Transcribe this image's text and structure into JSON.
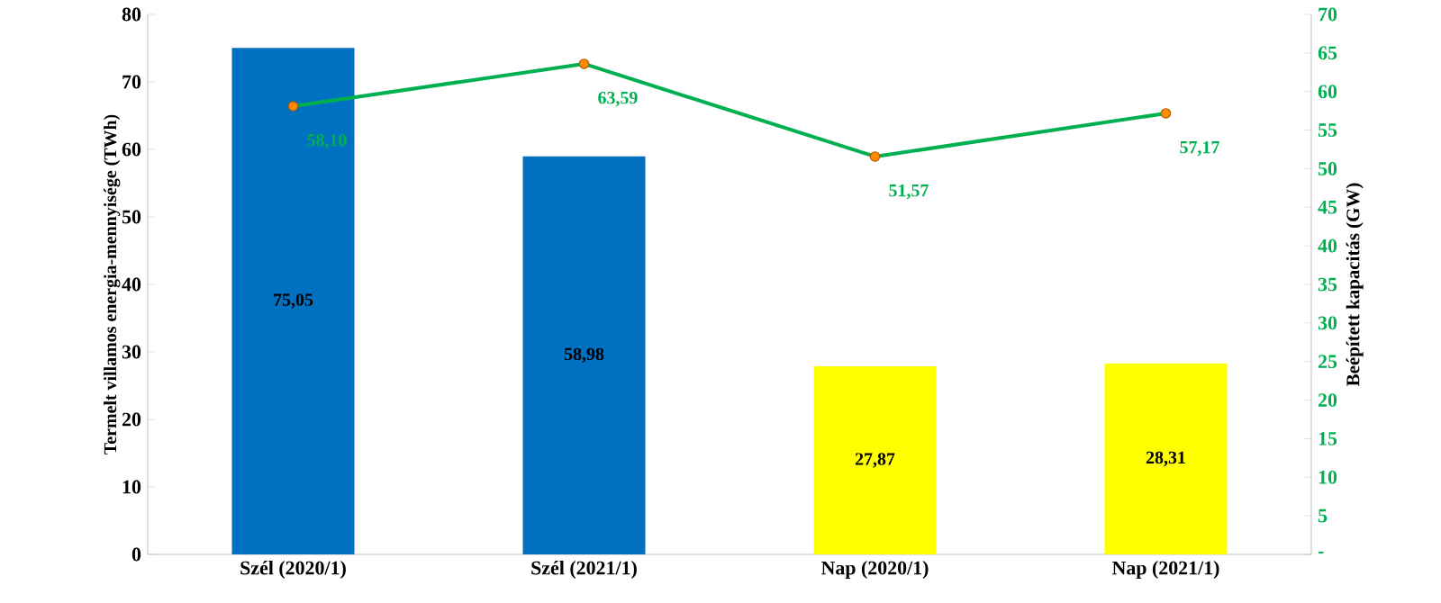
{
  "chart_data": {
    "type": "bar",
    "categories": [
      "Szél (2020/1)",
      "Szél (2021/1)",
      "Nap (2020/1)",
      "Nap (2021/1)"
    ],
    "ylabel": "Termelt villamos energia-mennyisége (TWh)",
    "y2label": "Beépített kapacitás (GW)",
    "ylim": [
      0,
      80
    ],
    "yticks": [
      0,
      10,
      20,
      30,
      40,
      50,
      60,
      70,
      80
    ],
    "y2lim": [
      0,
      70
    ],
    "y2ticks": [
      {
        "value": 0,
        "label": "-"
      },
      5,
      10,
      15,
      20,
      25,
      30,
      35,
      40,
      45,
      50,
      55,
      60,
      65,
      70
    ],
    "grid": false,
    "legend": false,
    "series": [
      {
        "colors": [
          "#0070c0",
          "#0070c0",
          "#ffff00",
          "#ffff00"
        ],
        "values": [
          75.05,
          58.98,
          27.87,
          28.31
        ],
        "value_labels": [
          "75,05",
          "58,98",
          "27,87",
          "28,31"
        ]
      },
      {
        "type": "line",
        "axis": "y2",
        "color": "#00b050",
        "marker": "circle",
        "values": [
          58.1,
          63.59,
          51.57,
          57.17
        ],
        "value_labels": [
          "58,10",
          "63,59",
          "51,57",
          "57,17"
        ]
      }
    ]
  }
}
